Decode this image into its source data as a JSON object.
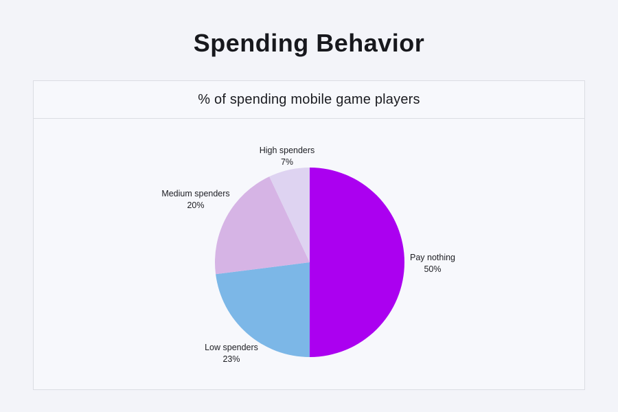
{
  "page": {
    "title": "Spending Behavior",
    "background_color": "#f3f4f9"
  },
  "card": {
    "subtitle": "% of spending mobile game players",
    "background_color": "#f7f8fc",
    "border_color": "#dbdde3"
  },
  "chart_data": {
    "type": "pie",
    "title": "% of spending mobile game players",
    "start_angle_deg": 0,
    "direction": "clockwise",
    "legend_position": "labels-around-pie",
    "slices": [
      {
        "label": "Pay nothing",
        "value": 50,
        "pct_label": "50%",
        "color": "#ab00f0"
      },
      {
        "label": "Low spenders",
        "value": 23,
        "pct_label": "23%",
        "color": "#7cb7e7"
      },
      {
        "label": "Medium spenders",
        "value": 20,
        "pct_label": "20%",
        "color": "#d6b4e5"
      },
      {
        "label": "High spenders",
        "value": 7,
        "pct_label": "7%",
        "color": "#ded3f1"
      }
    ]
  }
}
